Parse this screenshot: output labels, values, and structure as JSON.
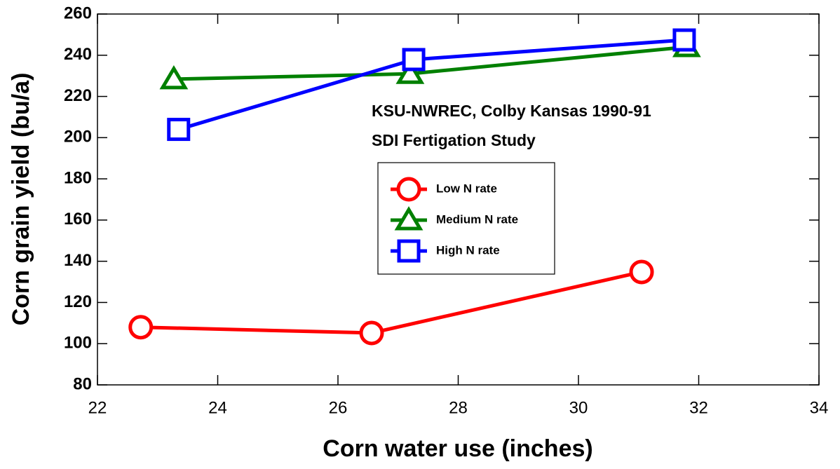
{
  "chart_data": {
    "type": "line",
    "annotations": [
      "KSU-NWREC, Colby Kansas 1990-91",
      "SDI Fertigation Study"
    ],
    "x_label": "Corn water use (inches)",
    "y_label": "Corn grain yield (bu/a)",
    "xlim": [
      22,
      34
    ],
    "xticks": [
      22,
      24,
      26,
      28,
      30,
      32,
      34
    ],
    "ylim": [
      80,
      260
    ],
    "yticks": [
      80,
      100,
      120,
      140,
      160,
      180,
      200,
      220,
      240,
      260
    ],
    "series": [
      {
        "name": "Low N rate",
        "color": "#ff0000",
        "marker": "circle",
        "x": [
          22.72,
          26.56,
          31.05
        ],
        "values": [
          108,
          105.2,
          134.8
        ]
      },
      {
        "name": "Medium N rate",
        "color": "#008000",
        "marker": "triangle",
        "x": [
          23.27,
          27.2,
          31.8
        ],
        "values": [
          228.4,
          231,
          244
        ]
      },
      {
        "name": "High N rate",
        "color": "#0000ff",
        "marker": "square",
        "x": [
          23.35,
          27.26,
          31.76
        ],
        "values": [
          204,
          237.9,
          247.4
        ]
      }
    ]
  }
}
